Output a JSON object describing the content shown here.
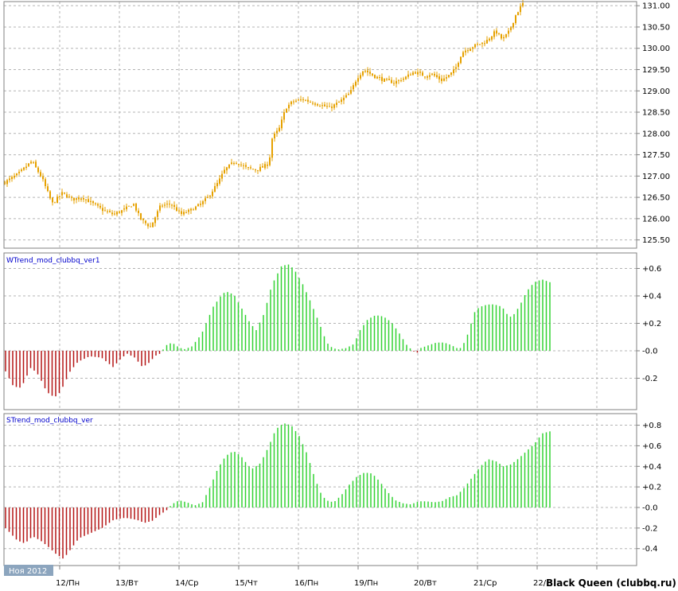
{
  "colors": {
    "candle": "#e6a100",
    "positive": "#32d232",
    "negative": "#b41414",
    "grid": "#b4b4b4",
    "frame": "#808080",
    "label": "#0000cc",
    "badge": "#8ca5be"
  },
  "date_badge": "Ноя 2012",
  "watermark": "Black Queen (clubbq.ru)",
  "x_axis": {
    "labels": [
      "12/Пн",
      "13/Вт",
      "14/Ср",
      "15/Чт",
      "16/Пн",
      "19/Пн",
      "20/Вт",
      "21/Ср",
      "22/"
    ]
  },
  "chart_data": [
    {
      "type": "candlestick",
      "y_ticks": [
        "131.00",
        "130.50",
        "130.00",
        "129.50",
        "129.00",
        "128.50",
        "128.00",
        "127.50",
        "127.00",
        "126.50",
        "126.00",
        "125.50"
      ],
      "ylim": [
        125.4,
        131.05
      ],
      "bars": 218,
      "close_path": [
        [
          0,
          126.85
        ],
        [
          8,
          127.05
        ],
        [
          16,
          127.35
        ],
        [
          22,
          126.95
        ],
        [
          28,
          126.35
        ],
        [
          34,
          126.6
        ],
        [
          40,
          126.45
        ],
        [
          46,
          126.5
        ],
        [
          52,
          126.35
        ],
        [
          58,
          126.2
        ],
        [
          64,
          126.1
        ],
        [
          70,
          126.2
        ],
        [
          76,
          126.35
        ],
        [
          80,
          126.0
        ],
        [
          86,
          125.8
        ],
        [
          92,
          126.3
        ],
        [
          98,
          126.35
        ],
        [
          104,
          126.1
        ],
        [
          110,
          126.2
        ],
        [
          116,
          126.35
        ],
        [
          120,
          126.5
        ],
        [
          126,
          126.85
        ],
        [
          130,
          127.15
        ],
        [
          136,
          127.35
        ],
        [
          142,
          127.2
        ],
        [
          148,
          127.15
        ],
        [
          152,
          127.2
        ],
        [
          156,
          127.3
        ],
        [
          158,
          127.9
        ],
        [
          162,
          128.1
        ],
        [
          166,
          128.6
        ],
        [
          170,
          128.75
        ],
        [
          176,
          128.8
        ],
        [
          184,
          128.7
        ],
        [
          192,
          128.6
        ],
        [
          198,
          128.75
        ],
        [
          204,
          128.95
        ],
        [
          208,
          129.3
        ],
        [
          212,
          129.5
        ],
        [
          218,
          129.35
        ],
        [
          224,
          129.25
        ],
        [
          230,
          129.2
        ],
        [
          236,
          129.3
        ],
        [
          242,
          129.45
        ],
        [
          248,
          129.35
        ],
        [
          252,
          129.4
        ],
        [
          258,
          129.25
        ],
        [
          262,
          129.35
        ],
        [
          266,
          129.5
        ],
        [
          270,
          129.9
        ],
        [
          274,
          130.0
        ],
        [
          280,
          130.1
        ],
        [
          284,
          130.15
        ],
        [
          290,
          130.4
        ],
        [
          294,
          130.2
        ],
        [
          298,
          130.4
        ],
        [
          302,
          130.8
        ],
        [
          306,
          131.05
        ]
      ]
    },
    {
      "type": "histogram",
      "name": "WTrend_mod_clubbq_ver1",
      "y_ticks": [
        "+0.6",
        "+0.4",
        "+0.2",
        "-0.0",
        "-0.2"
      ],
      "ylim": [
        -0.43,
        0.67
      ],
      "bars": 153,
      "key_points": [
        [
          0,
          -0.15
        ],
        [
          4,
          -0.26
        ],
        [
          8,
          -0.27
        ],
        [
          13,
          -0.12
        ],
        [
          17,
          -0.18
        ],
        [
          21,
          -0.3
        ],
        [
          25,
          -0.34
        ],
        [
          28,
          -0.3
        ],
        [
          33,
          -0.15
        ],
        [
          37,
          -0.08
        ],
        [
          43,
          -0.04
        ],
        [
          49,
          -0.05
        ],
        [
          55,
          -0.12
        ],
        [
          58,
          -0.07
        ],
        [
          62,
          -0.02
        ],
        [
          66,
          -0.05
        ],
        [
          70,
          -0.12
        ],
        [
          74,
          -0.08
        ],
        [
          76,
          -0.04
        ],
        [
          79,
          -0.02
        ],
        [
          80,
          0.0
        ],
        [
          82,
          0.04
        ],
        [
          85,
          0.06
        ],
        [
          88,
          0.03
        ],
        [
          91,
          0.01
        ],
        [
          95,
          0.03
        ],
        [
          100,
          0.12
        ],
        [
          106,
          0.32
        ],
        [
          111,
          0.42
        ],
        [
          114,
          0.43
        ],
        [
          117,
          0.4
        ],
        [
          121,
          0.3
        ],
        [
          125,
          0.2
        ],
        [
          128,
          0.15
        ],
        [
          132,
          0.27
        ],
        [
          136,
          0.48
        ],
        [
          141,
          0.62
        ],
        [
          145,
          0.63
        ],
        [
          148,
          0.58
        ],
        [
          152,
          0.48
        ],
        [
          156,
          0.35
        ],
        [
          160,
          0.21
        ],
        [
          164,
          0.06
        ],
        [
          167,
          0.02
        ],
        [
          170,
          0.01
        ],
        [
          174,
          0.02
        ],
        [
          178,
          0.05
        ],
        [
          181,
          0.15
        ],
        [
          185,
          0.23
        ],
        [
          189,
          0.26
        ],
        [
          193,
          0.25
        ],
        [
          197,
          0.21
        ],
        [
          201,
          0.13
        ],
        [
          205,
          0.04
        ],
        [
          208,
          0.0
        ],
        [
          210,
          -0.02
        ],
        [
          212,
          0.02
        ],
        [
          216,
          0.04
        ],
        [
          220,
          0.06
        ],
        [
          224,
          0.06
        ],
        [
          228,
          0.04
        ],
        [
          230,
          0.02
        ],
        [
          233,
          0.02
        ],
        [
          236,
          0.12
        ],
        [
          240,
          0.3
        ],
        [
          244,
          0.33
        ],
        [
          248,
          0.34
        ],
        [
          252,
          0.33
        ],
        [
          255,
          0.3
        ],
        [
          257,
          0.24
        ],
        [
          260,
          0.27
        ],
        [
          263,
          0.34
        ],
        [
          266,
          0.43
        ],
        [
          270,
          0.5
        ],
        [
          274,
          0.52
        ],
        [
          278,
          0.5
        ]
      ]
    },
    {
      "type": "histogram",
      "name": "STrend_mod_clubbq_ver",
      "y_ticks": [
        "+0.8",
        "+0.6",
        "+0.4",
        "+0.2",
        "-0.0",
        "-0.2",
        "-0.4"
      ],
      "ylim": [
        -0.56,
        0.84
      ],
      "bars": 153,
      "key_points": [
        [
          0,
          -0.2
        ],
        [
          6,
          -0.32
        ],
        [
          10,
          -0.35
        ],
        [
          14,
          -0.28
        ],
        [
          18,
          -0.32
        ],
        [
          22,
          -0.38
        ],
        [
          26,
          -0.45
        ],
        [
          30,
          -0.5
        ],
        [
          34,
          -0.4
        ],
        [
          38,
          -0.3
        ],
        [
          44,
          -0.25
        ],
        [
          50,
          -0.2
        ],
        [
          56,
          -0.12
        ],
        [
          62,
          -0.1
        ],
        [
          68,
          -0.12
        ],
        [
          72,
          -0.15
        ],
        [
          76,
          -0.13
        ],
        [
          80,
          -0.07
        ],
        [
          84,
          -0.02
        ],
        [
          86,
          0.03
        ],
        [
          90,
          0.07
        ],
        [
          94,
          0.05
        ],
        [
          98,
          0.02
        ],
        [
          102,
          0.05
        ],
        [
          106,
          0.2
        ],
        [
          110,
          0.38
        ],
        [
          114,
          0.5
        ],
        [
          118,
          0.55
        ],
        [
          122,
          0.5
        ],
        [
          126,
          0.4
        ],
        [
          128,
          0.38
        ],
        [
          132,
          0.43
        ],
        [
          136,
          0.58
        ],
        [
          140,
          0.76
        ],
        [
          144,
          0.82
        ],
        [
          148,
          0.8
        ],
        [
          152,
          0.7
        ],
        [
          156,
          0.53
        ],
        [
          160,
          0.3
        ],
        [
          163,
          0.15
        ],
        [
          166,
          0.07
        ],
        [
          170,
          0.05
        ],
        [
          174,
          0.12
        ],
        [
          178,
          0.22
        ],
        [
          182,
          0.3
        ],
        [
          186,
          0.34
        ],
        [
          190,
          0.33
        ],
        [
          194,
          0.25
        ],
        [
          198,
          0.15
        ],
        [
          202,
          0.07
        ],
        [
          206,
          0.04
        ],
        [
          210,
          0.03
        ],
        [
          214,
          0.06
        ],
        [
          218,
          0.06
        ],
        [
          222,
          0.05
        ],
        [
          226,
          0.06
        ],
        [
          230,
          0.1
        ],
        [
          234,
          0.12
        ],
        [
          238,
          0.2
        ],
        [
          242,
          0.3
        ],
        [
          246,
          0.4
        ],
        [
          250,
          0.47
        ],
        [
          254,
          0.45
        ],
        [
          258,
          0.4
        ],
        [
          262,
          0.42
        ],
        [
          266,
          0.48
        ],
        [
          270,
          0.55
        ],
        [
          274,
          0.62
        ],
        [
          278,
          0.72
        ],
        [
          282,
          0.74
        ]
      ]
    }
  ]
}
